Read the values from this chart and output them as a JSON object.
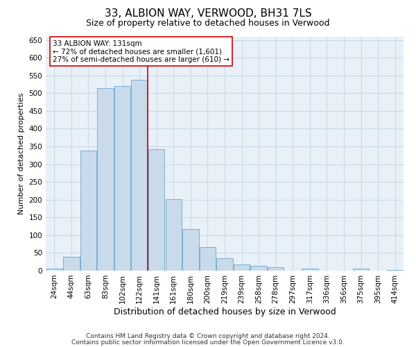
{
  "title": "33, ALBION WAY, VERWOOD, BH31 7LS",
  "subtitle": "Size of property relative to detached houses in Verwood",
  "xlabel": "Distribution of detached houses by size in Verwood",
  "ylabel": "Number of detached properties",
  "categories": [
    "24sqm",
    "44sqm",
    "63sqm",
    "83sqm",
    "102sqm",
    "122sqm",
    "141sqm",
    "161sqm",
    "180sqm",
    "200sqm",
    "219sqm",
    "239sqm",
    "258sqm",
    "278sqm",
    "297sqm",
    "317sqm",
    "336sqm",
    "356sqm",
    "375sqm",
    "395sqm",
    "414sqm"
  ],
  "values": [
    5,
    40,
    338,
    515,
    520,
    538,
    343,
    202,
    117,
    67,
    35,
    18,
    13,
    10,
    0,
    5,
    0,
    0,
    5,
    0,
    2
  ],
  "bar_color": "#c9daea",
  "bar_edge_color": "#7bafd4",
  "bar_width": 0.95,
  "vline_color": "#cc0000",
  "annotation_line1": "33 ALBION WAY: 131sqm",
  "annotation_line2": "← 72% of detached houses are smaller (1,601)",
  "annotation_line3": "27% of semi-detached houses are larger (610) →",
  "ylim": [
    0,
    660
  ],
  "yticks": [
    0,
    50,
    100,
    150,
    200,
    250,
    300,
    350,
    400,
    450,
    500,
    550,
    600,
    650
  ],
  "background_color": "#ffffff",
  "plot_bg_color": "#e8f0f8",
  "grid_color": "#c8d8e8",
  "footer_line1": "Contains HM Land Registry data © Crown copyright and database right 2024.",
  "footer_line2": "Contains public sector information licensed under the Open Government Licence v3.0.",
  "title_fontsize": 11,
  "subtitle_fontsize": 9,
  "xlabel_fontsize": 9,
  "ylabel_fontsize": 8,
  "tick_fontsize": 7.5,
  "annot_fontsize": 7.5,
  "footer_fontsize": 6.5
}
